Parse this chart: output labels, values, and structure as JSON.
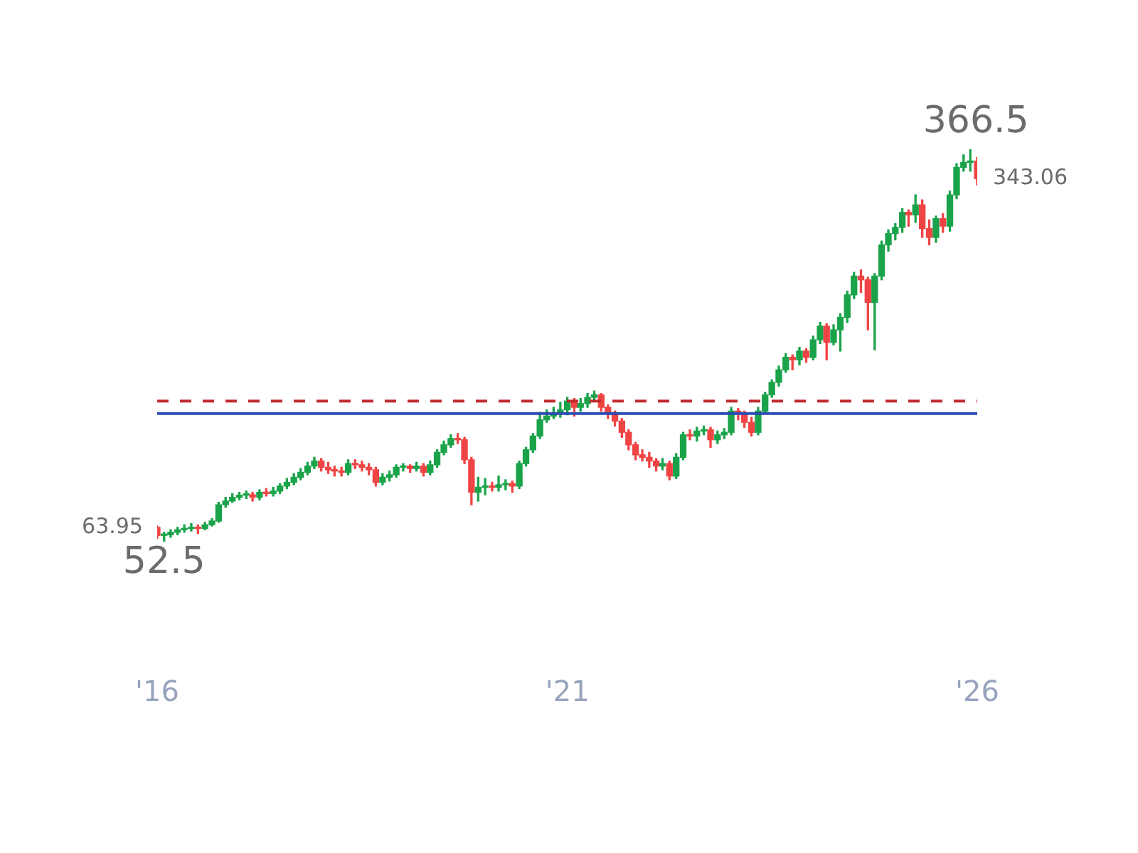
{
  "chart_data": {
    "type": "candlestick",
    "x": [
      "2016-01",
      "2016-02",
      "2016-03",
      "2016-04",
      "2016-05",
      "2016-06",
      "2016-07",
      "2016-08",
      "2016-09",
      "2016-10",
      "2016-11",
      "2016-12",
      "2017-01",
      "2017-02",
      "2017-03",
      "2017-04",
      "2017-05",
      "2017-06",
      "2017-07",
      "2017-08",
      "2017-09",
      "2017-10",
      "2017-11",
      "2017-12",
      "2018-01",
      "2018-02",
      "2018-03",
      "2018-04",
      "2018-05",
      "2018-06",
      "2018-07",
      "2018-08",
      "2018-09",
      "2018-10",
      "2018-11",
      "2018-12",
      "2019-01",
      "2019-02",
      "2019-03",
      "2019-04",
      "2019-05",
      "2019-06",
      "2019-07",
      "2019-08",
      "2019-09",
      "2019-10",
      "2019-11",
      "2019-12",
      "2020-01",
      "2020-02",
      "2020-03",
      "2020-04",
      "2020-05",
      "2020-06",
      "2020-07",
      "2020-08",
      "2020-09",
      "2020-10",
      "2020-11",
      "2020-12",
      "2021-01",
      "2021-02",
      "2021-03",
      "2021-04",
      "2021-05",
      "2021-06",
      "2021-07",
      "2021-08",
      "2021-09",
      "2021-10",
      "2021-11",
      "2021-12",
      "2022-01",
      "2022-02",
      "2022-03",
      "2022-04",
      "2022-05",
      "2022-06",
      "2022-07",
      "2022-08",
      "2022-09",
      "2022-10",
      "2022-11",
      "2022-12",
      "2023-01",
      "2023-02",
      "2023-03",
      "2023-04",
      "2023-05",
      "2023-06",
      "2023-07",
      "2023-08",
      "2023-09",
      "2023-10",
      "2023-11",
      "2023-12",
      "2024-01",
      "2024-02",
      "2024-03",
      "2024-04",
      "2024-05",
      "2024-06",
      "2024-07",
      "2024-08",
      "2024-09",
      "2024-10",
      "2024-11",
      "2024-12",
      "2025-01",
      "2025-02",
      "2025-03",
      "2025-04",
      "2025-05",
      "2025-06",
      "2025-07",
      "2025-08",
      "2025-09",
      "2025-10",
      "2025-11",
      "2025-12",
      "2026-01"
    ],
    "ohlc": [
      [
        63.95,
        65,
        55,
        57.5
      ],
      [
        57.5,
        60,
        52.5,
        58
      ],
      [
        58,
        62,
        56,
        60
      ],
      [
        60,
        64,
        58,
        62
      ],
      [
        62,
        66,
        60,
        63
      ],
      [
        63,
        67,
        61,
        64
      ],
      [
        64,
        66,
        59,
        63
      ],
      [
        63,
        68,
        62,
        66
      ],
      [
        66,
        71,
        65,
        69
      ],
      [
        69,
        84,
        68,
        82
      ],
      [
        82,
        88,
        80,
        85
      ],
      [
        85,
        91,
        84,
        88
      ],
      [
        88,
        92,
        86,
        89.7
      ],
      [
        89.7,
        93,
        87,
        90
      ],
      [
        90,
        92,
        85,
        88
      ],
      [
        88,
        94,
        86,
        92
      ],
      [
        92,
        95,
        89,
        91
      ],
      [
        91,
        96,
        89,
        93
      ],
      [
        93,
        99,
        91,
        97
      ],
      [
        97,
        103,
        95,
        100
      ],
      [
        100,
        107,
        98,
        104
      ],
      [
        104,
        111,
        102,
        108
      ],
      [
        108,
        116,
        106,
        113
      ],
      [
        113,
        120,
        111,
        117
      ],
      [
        117,
        119,
        109,
        112
      ],
      [
        112,
        116,
        107,
        110
      ],
      [
        110,
        113,
        105,
        109
      ],
      [
        109,
        112,
        105,
        108
      ],
      [
        108,
        118,
        106,
        115
      ],
      [
        115,
        118,
        111,
        114
      ],
      [
        114,
        117,
        109,
        112
      ],
      [
        112,
        115,
        106,
        110
      ],
      [
        110,
        112,
        97,
        100
      ],
      [
        100,
        107,
        98,
        104
      ],
      [
        104,
        109,
        101,
        106
      ],
      [
        106,
        114,
        104,
        112
      ],
      [
        112,
        115,
        109,
        113
      ],
      [
        113,
        114,
        108,
        111
      ],
      [
        111,
        116,
        109,
        113
      ],
      [
        113,
        115,
        105,
        108
      ],
      [
        108,
        117,
        106,
        114
      ],
      [
        114,
        126,
        112,
        124
      ],
      [
        124,
        133,
        122,
        130
      ],
      [
        130,
        138,
        128,
        135
      ],
      [
        135,
        139,
        131,
        134
      ],
      [
        134,
        136,
        115,
        118
      ],
      [
        118,
        120,
        82,
        92
      ],
      [
        92,
        104,
        85,
        96
      ],
      [
        96,
        103,
        90,
        97
      ],
      [
        97,
        100,
        93,
        96
      ],
      [
        96,
        105,
        93,
        98
      ],
      [
        98,
        102,
        94,
        99
      ],
      [
        99,
        101,
        92,
        97
      ],
      [
        97,
        117,
        95,
        115
      ],
      [
        115,
        128,
        113,
        126
      ],
      [
        126,
        139,
        124,
        137
      ],
      [
        137,
        156,
        135,
        150
      ],
      [
        150,
        158,
        148,
        153
      ],
      [
        153,
        160,
        151,
        155
      ],
      [
        155,
        164,
        152,
        158
      ],
      [
        158,
        168,
        154,
        165
      ],
      [
        165,
        167,
        153,
        160
      ],
      [
        160,
        167,
        157,
        163
      ],
      [
        163,
        171,
        160,
        168
      ],
      [
        168,
        173,
        165,
        170
      ],
      [
        170,
        171,
        157,
        160
      ],
      [
        160,
        162,
        151,
        155
      ],
      [
        155,
        157,
        145,
        149
      ],
      [
        149,
        151,
        136,
        140
      ],
      [
        140,
        142,
        126,
        130
      ],
      [
        130,
        132,
        118,
        122
      ],
      [
        122,
        126,
        117,
        120
      ],
      [
        120,
        124,
        112,
        117
      ],
      [
        117,
        119,
        109,
        113
      ],
      [
        113,
        119,
        110,
        115
      ],
      [
        115,
        117,
        102,
        105
      ],
      [
        105,
        123,
        103,
        120
      ],
      [
        120,
        140,
        118,
        138
      ],
      [
        138,
        142,
        134,
        137
      ],
      [
        137,
        144,
        133,
        141
      ],
      [
        141,
        145,
        138,
        142
      ],
      [
        142,
        144,
        128,
        134
      ],
      [
        134,
        141,
        131,
        138
      ],
      [
        138,
        143,
        135,
        140
      ],
      [
        140,
        160,
        138,
        157
      ],
      [
        157,
        159,
        150,
        155
      ],
      [
        155,
        157,
        144,
        148
      ],
      [
        148,
        152,
        137,
        140
      ],
      [
        140,
        160,
        138,
        157
      ],
      [
        157,
        172,
        155,
        170
      ],
      [
        170,
        182,
        168,
        180
      ],
      [
        180,
        193,
        177,
        190
      ],
      [
        190,
        203,
        188,
        200
      ],
      [
        200,
        202,
        190,
        198
      ],
      [
        198,
        208,
        194,
        205
      ],
      [
        205,
        207,
        196,
        200
      ],
      [
        200,
        217,
        198,
        214
      ],
      [
        214,
        228,
        211,
        225
      ],
      [
        225,
        227,
        198,
        212
      ],
      [
        212,
        226,
        210,
        222
      ],
      [
        222,
        235,
        205,
        232
      ],
      [
        232,
        253,
        228,
        250
      ],
      [
        250,
        268,
        247,
        265
      ],
      [
        265,
        270,
        252,
        262
      ],
      [
        262,
        264,
        222,
        244
      ],
      [
        244,
        267,
        206,
        265
      ],
      [
        265,
        293,
        262,
        290
      ],
      [
        290,
        302,
        285,
        299
      ],
      [
        299,
        307,
        294,
        304
      ],
      [
        304,
        319,
        300,
        316
      ],
      [
        316,
        318,
        305,
        314
      ],
      [
        314,
        330,
        308,
        322
      ],
      [
        322,
        326,
        296,
        303
      ],
      [
        303,
        310,
        290,
        296
      ],
      [
        296,
        313,
        292,
        311
      ],
      [
        311,
        315,
        300,
        305
      ],
      [
        305,
        333,
        301,
        330
      ],
      [
        330,
        355,
        327,
        352
      ],
      [
        352,
        362,
        349,
        356
      ],
      [
        356,
        366.5,
        349,
        357
      ],
      [
        357,
        360,
        338,
        343.06
      ]
    ],
    "colors": [
      "#ef4444",
      "#1aa34a",
      "#1aa34a",
      "#1aa34a",
      "#1aa34a",
      "#1aa34a",
      "#ef4444",
      "#1aa34a",
      "#1aa34a",
      "#1aa34a",
      "#1aa34a",
      "#1aa34a",
      "#1aa34a",
      "#1aa34a",
      "#ef4444",
      "#1aa34a",
      "#ef4444",
      "#1aa34a",
      "#1aa34a",
      "#1aa34a",
      "#1aa34a",
      "#1aa34a",
      "#1aa34a",
      "#1aa34a",
      "#ef4444",
      "#ef4444",
      "#ef4444",
      "#ef4444",
      "#1aa34a",
      "#ef4444",
      "#ef4444",
      "#ef4444",
      "#ef4444",
      "#1aa34a",
      "#1aa34a",
      "#1aa34a",
      "#1aa34a",
      "#ef4444",
      "#1aa34a",
      "#ef4444",
      "#1aa34a",
      "#1aa34a",
      "#1aa34a",
      "#1aa34a",
      "#ef4444",
      "#ef4444",
      "#ef4444",
      "#1aa34a",
      "#1aa34a",
      "#ef4444",
      "#1aa34a",
      "#1aa34a",
      "#ef4444",
      "#1aa34a",
      "#1aa34a",
      "#1aa34a",
      "#1aa34a",
      "#1aa34a",
      "#1aa34a",
      "#1aa34a",
      "#1aa34a",
      "#ef4444",
      "#1aa34a",
      "#1aa34a",
      "#1aa34a",
      "#ef4444",
      "#ef4444",
      "#ef4444",
      "#ef4444",
      "#ef4444",
      "#ef4444",
      "#ef4444",
      "#ef4444",
      "#ef4444",
      "#1aa34a",
      "#ef4444",
      "#1aa34a",
      "#1aa34a",
      "#ef4444",
      "#1aa34a",
      "#1aa34a",
      "#ef4444",
      "#1aa34a",
      "#1aa34a",
      "#1aa34a",
      "#ef4444",
      "#ef4444",
      "#ef4444",
      "#1aa34a",
      "#1aa34a",
      "#1aa34a",
      "#1aa34a",
      "#1aa34a",
      "#ef4444",
      "#1aa34a",
      "#ef4444",
      "#1aa34a",
      "#1aa34a",
      "#ef4444",
      "#1aa34a",
      "#1aa34a",
      "#1aa34a",
      "#1aa34a",
      "#ef4444",
      "#ef4444",
      "#1aa34a",
      "#1aa34a",
      "#1aa34a",
      "#1aa34a",
      "#1aa34a",
      "#ef4444",
      "#1aa34a",
      "#ef4444",
      "#ef4444",
      "#1aa34a",
      "#ef4444",
      "#1aa34a",
      "#1aa34a",
      "#1aa34a",
      "#1aa34a",
      "#ef4444"
    ],
    "xlim": [
      "2016-01",
      "2026-01"
    ],
    "xticks": [
      {
        "value": "2016-01",
        "label": "'16"
      },
      {
        "value": "2021-01",
        "label": "'21"
      },
      {
        "value": "2026-01",
        "label": "'26"
      }
    ],
    "tick_labels": "x",
    "grid": false,
    "legend": false,
    "ref_lines": [
      {
        "axis": "y",
        "value": 165,
        "color": "#c0282d",
        "line_style": "dashed"
      },
      {
        "axis": "y",
        "value": 155,
        "color": "#2a4bb0",
        "line_style": "solid"
      }
    ],
    "annotations": [
      {
        "text": "366.5",
        "x": "2025-12",
        "y": 366.5
      },
      {
        "text": "52.5",
        "x": "2016-02",
        "y": 52.5
      },
      {
        "text": "63.95",
        "x": "2016-01",
        "y": 63.95
      },
      {
        "text": "343.06",
        "x": "2026-01",
        "y": 343.06
      }
    ]
  }
}
